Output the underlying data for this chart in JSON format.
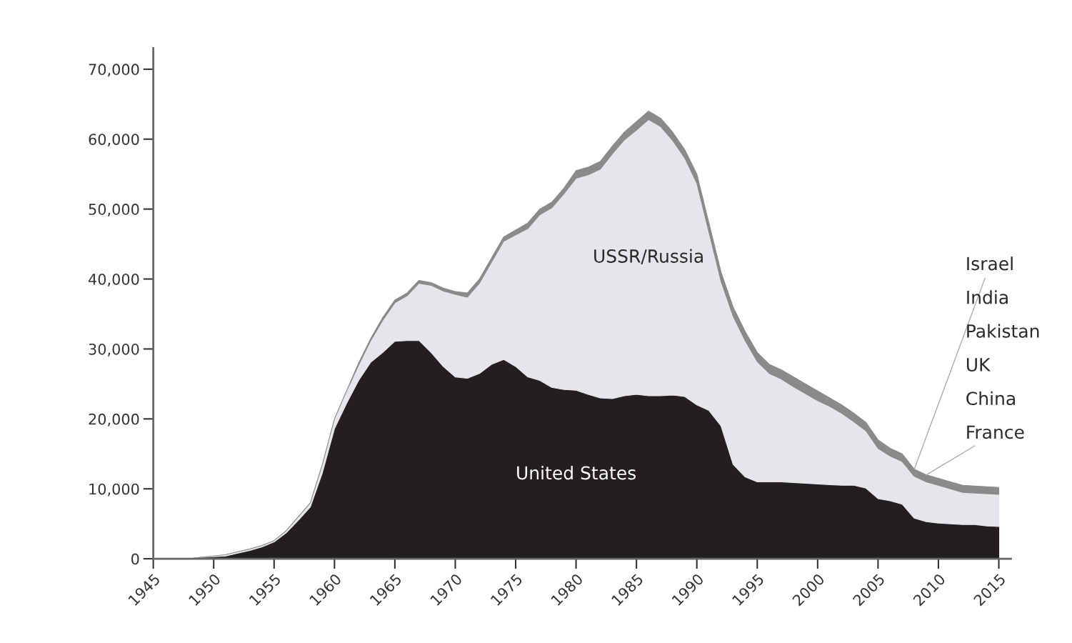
{
  "chart_data": {
    "type": "area",
    "stacked": true,
    "x": [
      1945,
      1946,
      1947,
      1948,
      1949,
      1950,
      1951,
      1952,
      1953,
      1954,
      1955,
      1956,
      1957,
      1958,
      1959,
      1960,
      1961,
      1962,
      1963,
      1964,
      1965,
      1966,
      1967,
      1968,
      1969,
      1970,
      1971,
      1972,
      1973,
      1974,
      1975,
      1976,
      1977,
      1978,
      1979,
      1980,
      1981,
      1982,
      1983,
      1984,
      1985,
      1986,
      1987,
      1988,
      1989,
      1990,
      1991,
      1992,
      1993,
      1994,
      1995,
      1996,
      1997,
      1998,
      1999,
      2000,
      2001,
      2002,
      2003,
      2004,
      2005,
      2006,
      2007,
      2008,
      2009,
      2010,
      2011,
      2012,
      2013,
      2014,
      2015
    ],
    "series": [
      {
        "name": "United States",
        "color": "#231f20",
        "values": [
          0,
          0,
          0,
          0,
          200,
          300,
          400,
          800,
          1200,
          1700,
          2400,
          3700,
          5500,
          7400,
          12300,
          18600,
          22200,
          25500,
          28100,
          29500,
          31100,
          31200,
          31200,
          29500,
          27500,
          26000,
          25800,
          26500,
          27800,
          28500,
          27500,
          26000,
          25500,
          24500,
          24200,
          24100,
          23500,
          23000,
          22900,
          23300,
          23500,
          23300,
          23300,
          23400,
          23200,
          22000,
          21200,
          19000,
          13500,
          11700,
          11000,
          11000,
          11000,
          10900,
          10800,
          10700,
          10600,
          10500,
          10500,
          10100,
          8600,
          8300,
          7800,
          5800,
          5300,
          5100,
          5000,
          4900,
          4900,
          4700,
          4600
        ]
      },
      {
        "name": "USSR/Russia",
        "color": "#e6e6ea",
        "values": [
          0,
          0,
          0,
          0,
          0,
          100,
          200,
          200,
          200,
          200,
          200,
          300,
          500,
          600,
          1200,
          1400,
          1800,
          2200,
          3100,
          4600,
          5500,
          6400,
          8200,
          9600,
          10800,
          11800,
          11600,
          12900,
          14600,
          16900,
          18800,
          21200,
          23700,
          25700,
          28000,
          30300,
          31400,
          32700,
          35000,
          36600,
          37800,
          39500,
          38500,
          36400,
          34100,
          31700,
          25500,
          20700,
          21200,
          19500,
          17200,
          15500,
          14700,
          13700,
          12800,
          11900,
          11200,
          10300,
          9100,
          8200,
          7200,
          6400,
          6100,
          6000,
          5700,
          5400,
          5000,
          4600,
          4500,
          4600,
          4600
        ]
      },
      {
        "color": "#8a8a8a",
        "values": [
          0,
          0,
          0,
          0,
          0,
          0,
          0,
          0,
          0,
          0,
          0,
          0,
          0,
          0,
          0,
          0,
          0,
          300,
          300,
          400,
          400,
          400,
          400,
          400,
          400,
          400,
          600,
          600,
          600,
          600,
          700,
          800,
          800,
          800,
          800,
          1100,
          1100,
          1100,
          1100,
          1100,
          1200,
          1200,
          1200,
          1200,
          1200,
          1300,
          1300,
          1300,
          1300,
          1300,
          1300,
          1300,
          1300,
          1400,
          1400,
          1400,
          1200,
          1200,
          1200,
          1200,
          1200,
          1100,
          1100,
          1000,
          1000,
          1000,
          1000,
          1000,
          1000,
          1000,
          1000
        ]
      }
    ],
    "annotations": [
      {
        "text": "Israel",
        "x": 2008,
        "y": 12800
      },
      "India",
      "Pakistan",
      "UK",
      "China",
      {
        "text": "France",
        "x": 2009,
        "y": 12000
      }
    ],
    "xlim": [
      1945,
      2016
    ],
    "xticks": [
      1945,
      1950,
      1955,
      1960,
      1965,
      1970,
      1975,
      1980,
      1985,
      1990,
      1995,
      2000,
      2005,
      2010,
      2015
    ],
    "ylim": [
      0,
      73000
    ],
    "yticks": [
      {
        "value": 0,
        "label": "0"
      },
      {
        "value": 10000,
        "label": "10,000"
      },
      {
        "value": 20000,
        "label": "20,000"
      },
      {
        "value": 30000,
        "label": "30,000"
      },
      {
        "value": 40000,
        "label": "40,000"
      },
      {
        "value": 50000,
        "label": "50,000"
      },
      {
        "value": 60000,
        "label": "60,000"
      },
      {
        "value": 70000,
        "label": "70,000"
      }
    ],
    "grid": false,
    "legend": false
  }
}
